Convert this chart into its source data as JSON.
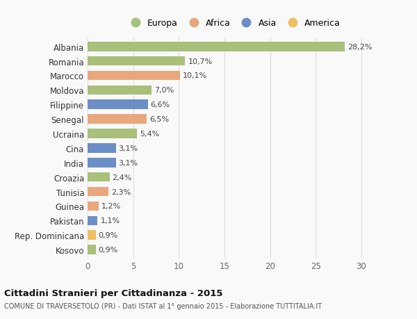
{
  "countries": [
    "Albania",
    "Romania",
    "Marocco",
    "Moldova",
    "Filippine",
    "Senegal",
    "Ucraina",
    "Cina",
    "India",
    "Croazia",
    "Tunisia",
    "Guinea",
    "Pakistan",
    "Rep. Dominicana",
    "Kosovo"
  ],
  "values": [
    28.2,
    10.7,
    10.1,
    7.0,
    6.6,
    6.5,
    5.4,
    3.1,
    3.1,
    2.4,
    2.3,
    1.2,
    1.1,
    0.9,
    0.9
  ],
  "labels": [
    "28,2%",
    "10,7%",
    "10,1%",
    "7,0%",
    "6,6%",
    "6,5%",
    "5,4%",
    "3,1%",
    "3,1%",
    "2,4%",
    "2,3%",
    "1,2%",
    "1,1%",
    "0,9%",
    "0,9%"
  ],
  "continents": [
    "Europa",
    "Europa",
    "Africa",
    "Europa",
    "Asia",
    "Africa",
    "Europa",
    "Asia",
    "Asia",
    "Europa",
    "Africa",
    "Africa",
    "Asia",
    "America",
    "Europa"
  ],
  "colors": {
    "Europa": "#a8c07a",
    "Africa": "#e8a87c",
    "Asia": "#6b8ec7",
    "America": "#f0c060"
  },
  "legend_order": [
    "Europa",
    "Africa",
    "Asia",
    "America"
  ],
  "title": "Cittadini Stranieri per Cittadinanza - 2015",
  "subtitle": "COMUNE DI TRAVERSETOLO (PR) - Dati ISTAT al 1° gennaio 2015 - Elaborazione TUTTITALIA.IT",
  "xlim": [
    0,
    32
  ],
  "xticks": [
    0,
    5,
    10,
    15,
    20,
    25,
    30
  ],
  "bg_color": "#f9f9f9",
  "grid_color": "#dddddd",
  "bar_height": 0.65,
  "label_fontsize": 8,
  "ytick_fontsize": 8.5,
  "xtick_fontsize": 8.5,
  "legend_fontsize": 9,
  "title_fontsize": 9.5,
  "subtitle_fontsize": 7
}
